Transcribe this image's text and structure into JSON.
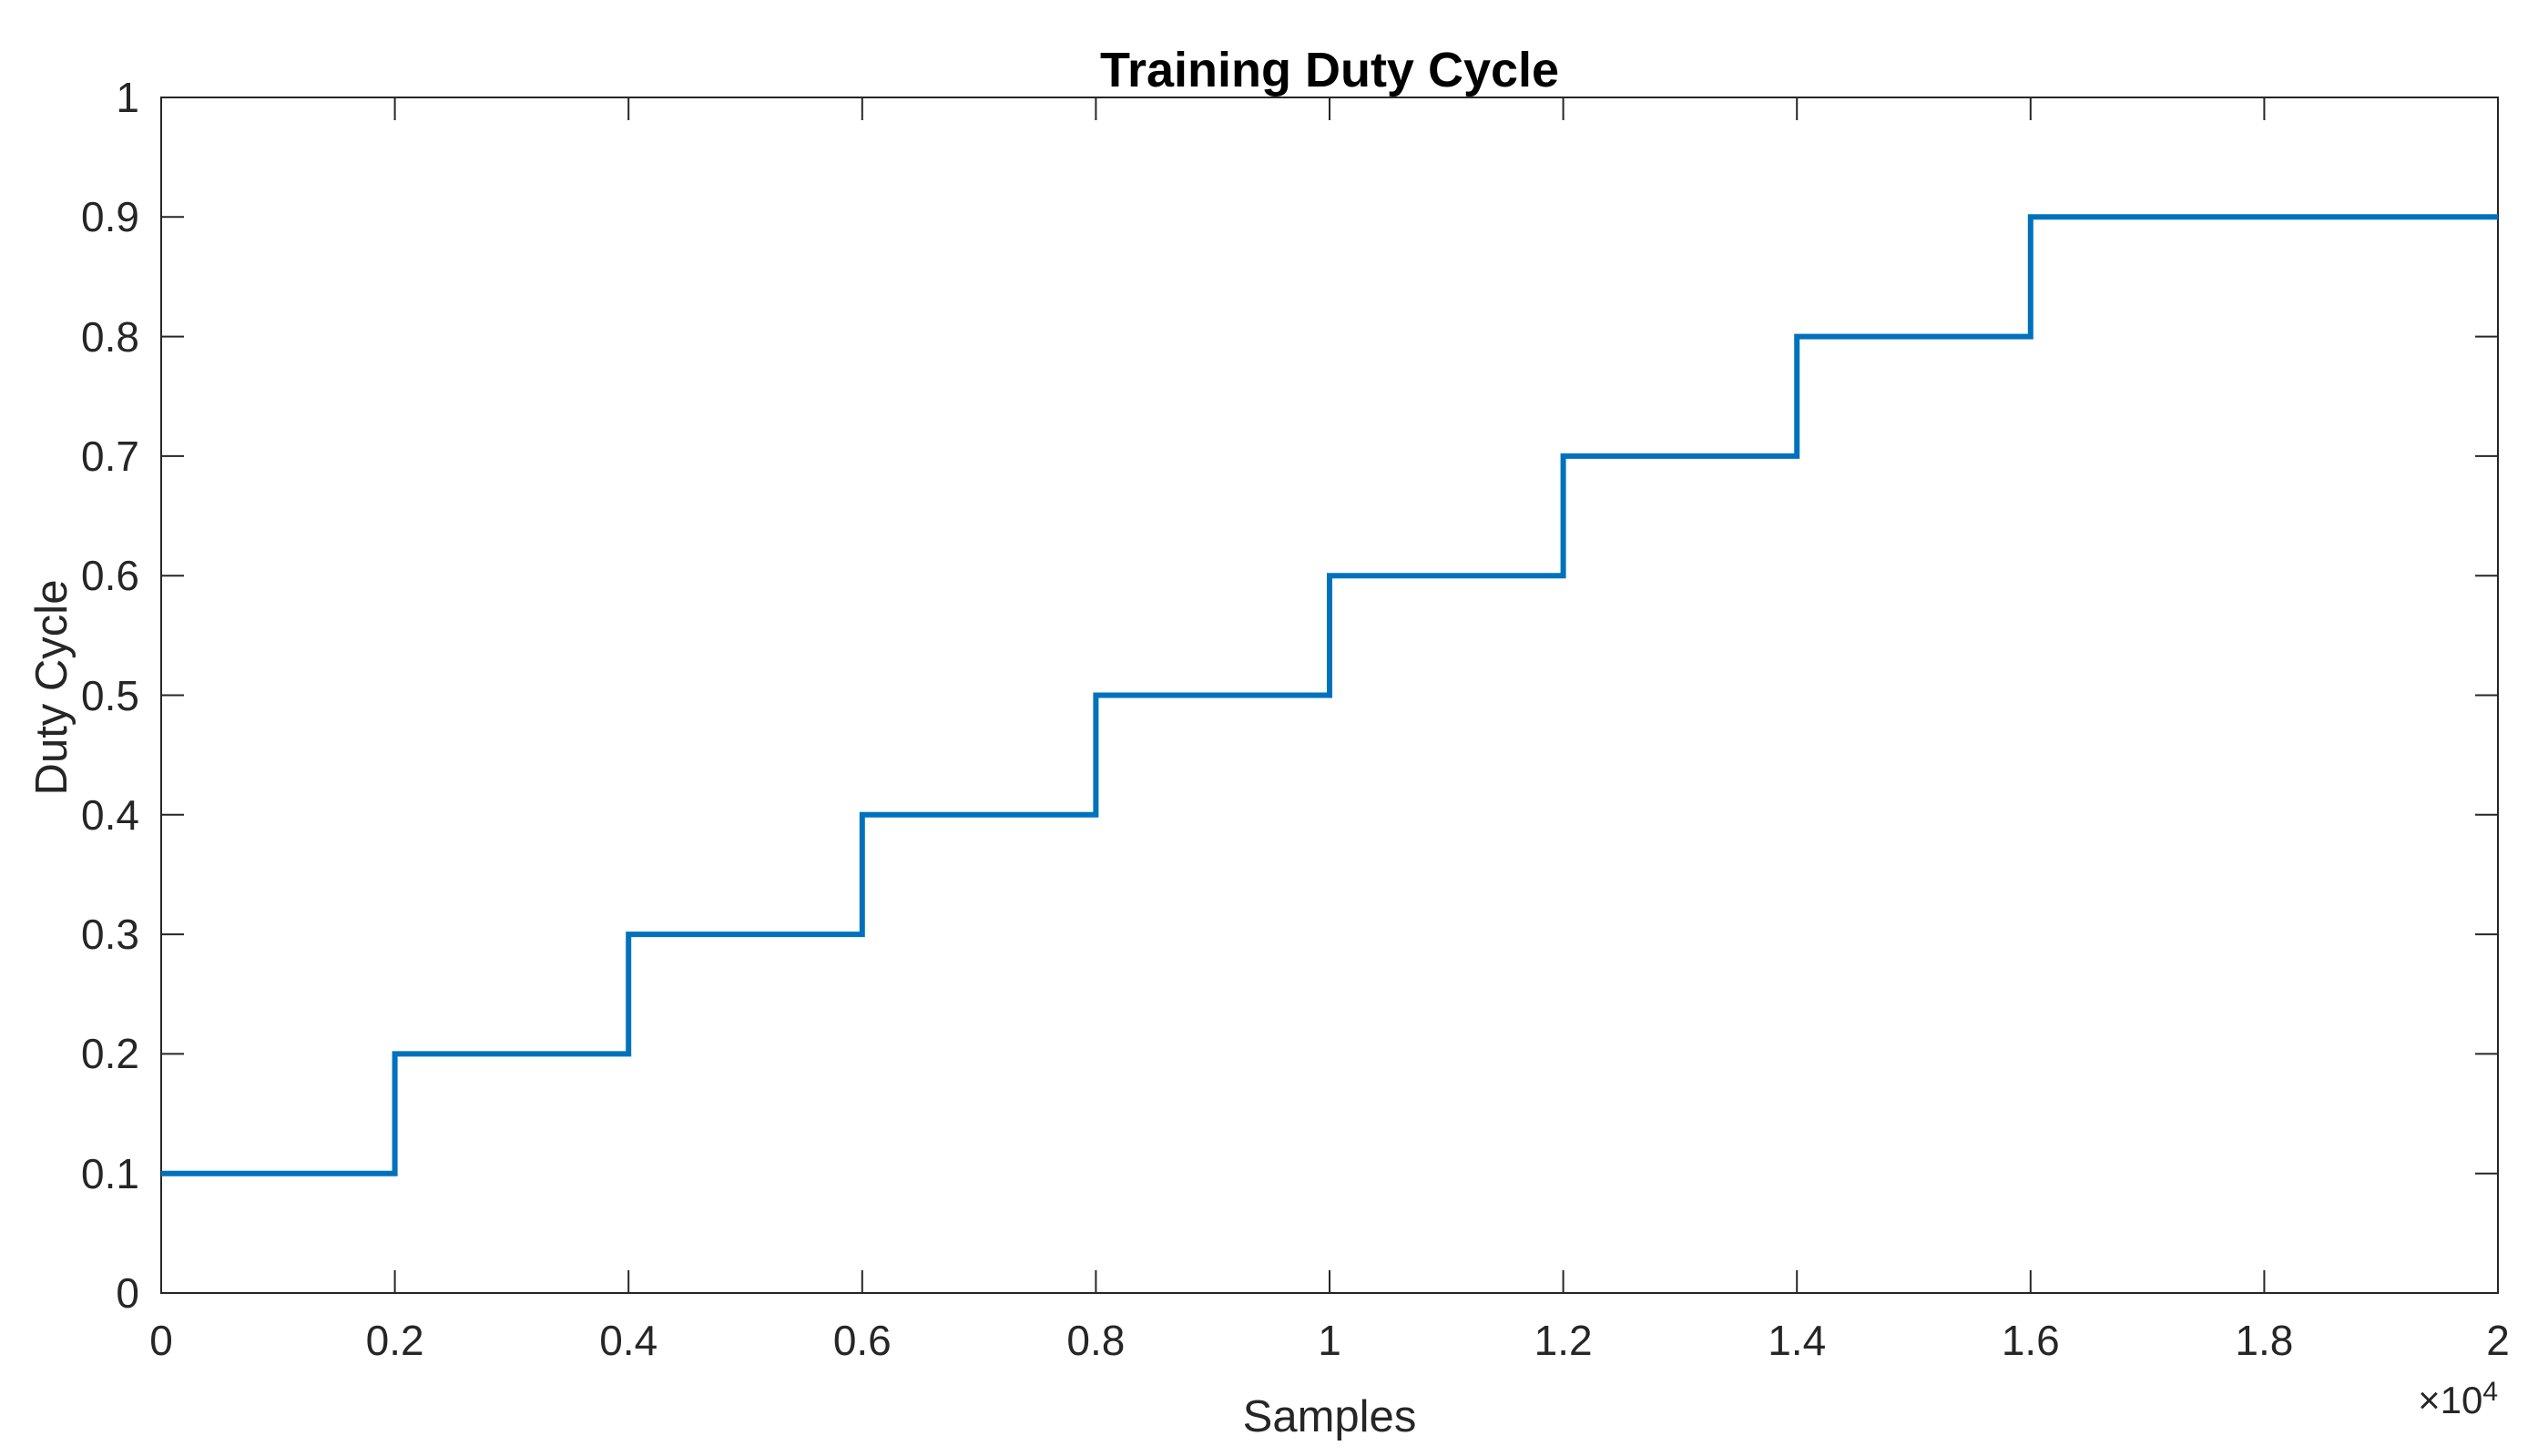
{
  "chart_data": {
    "type": "line",
    "subtype": "stairs",
    "title": "Training Duty Cycle",
    "xlabel": "Samples",
    "ylabel": "Duty Cycle",
    "x_axis_multiplier": {
      "times_base": "×10",
      "exponent": "4"
    },
    "xlim": [
      0,
      20000
    ],
    "ylim": [
      0,
      1
    ],
    "x_ticks": {
      "values": [
        0,
        2000,
        4000,
        6000,
        8000,
        10000,
        12000,
        14000,
        16000,
        18000,
        20000
      ],
      "labels": [
        "0",
        "0.2",
        "0.4",
        "0.6",
        "0.8",
        "1",
        "1.2",
        "1.4",
        "1.6",
        "1.8",
        "2"
      ]
    },
    "y_ticks": {
      "values": [
        0,
        0.1,
        0.2,
        0.3,
        0.4,
        0.5,
        0.6,
        0.7,
        0.8,
        0.9,
        1
      ],
      "labels": [
        "0",
        "0.1",
        "0.2",
        "0.3",
        "0.4",
        "0.5",
        "0.6",
        "0.7",
        "0.8",
        "0.9",
        "1"
      ]
    },
    "grid": false,
    "box": true,
    "tick_direction": "in",
    "legend": null,
    "axis_color": "#262626",
    "background_color": "#ffffff",
    "series": [
      {
        "name": "Training Duty Cycle",
        "color": "#0072BD",
        "line_width": 6,
        "points": [
          [
            0,
            0.1
          ],
          [
            2000,
            0.1
          ],
          [
            2000,
            0.2
          ],
          [
            4000,
            0.2
          ],
          [
            4000,
            0.3
          ],
          [
            6000,
            0.3
          ],
          [
            6000,
            0.4
          ],
          [
            8000,
            0.4
          ],
          [
            8000,
            0.5
          ],
          [
            10000,
            0.5
          ],
          [
            10000,
            0.6
          ],
          [
            12000,
            0.6
          ],
          [
            12000,
            0.7
          ],
          [
            14000,
            0.7
          ],
          [
            14000,
            0.8
          ],
          [
            16000,
            0.8
          ],
          [
            16000,
            0.9
          ],
          [
            20000,
            0.9
          ]
        ]
      }
    ]
  }
}
